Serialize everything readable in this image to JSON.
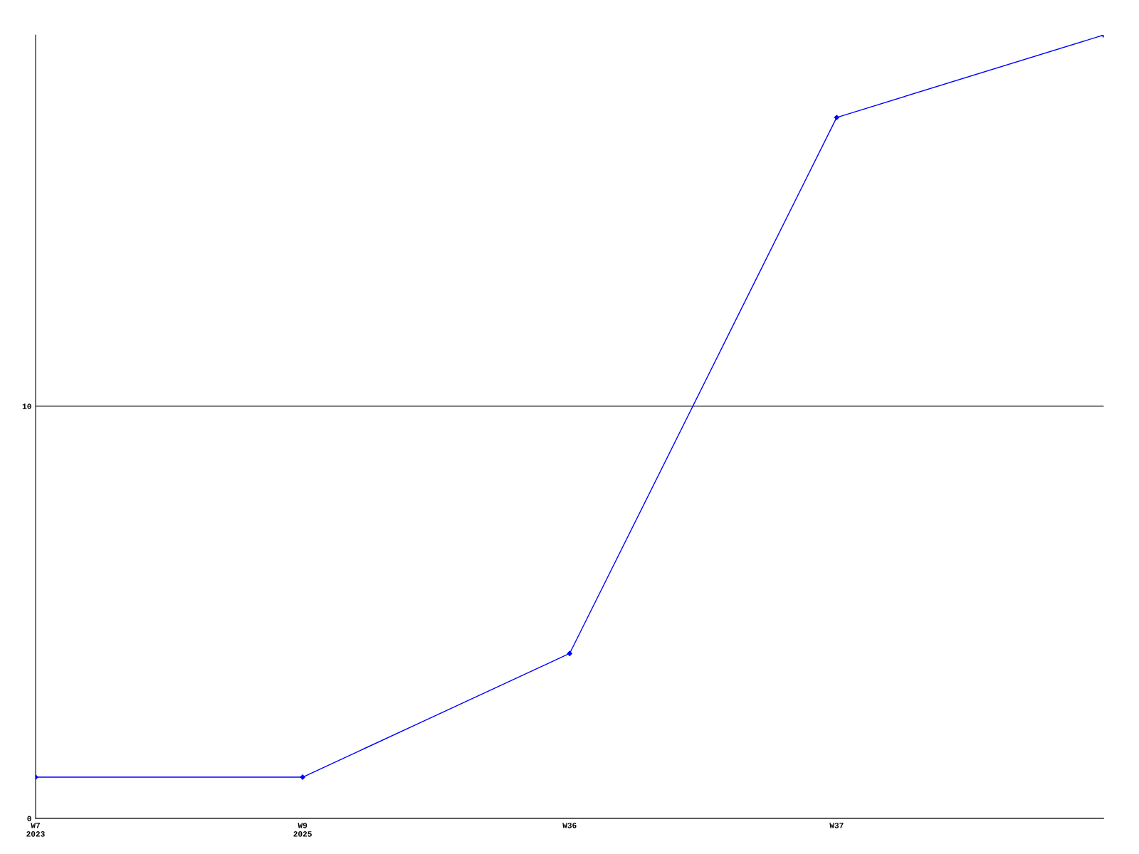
{
  "chart_data": {
    "type": "line",
    "categories": [
      "W7\n2023",
      "W9\n2025",
      "W36",
      "W37",
      null
    ],
    "series": [
      {
        "color": "#0000ff",
        "values": [
          1,
          1,
          4,
          17,
          19
        ]
      }
    ],
    "ylim": [
      0,
      19
    ],
    "yticks": [
      0,
      10
    ],
    "grid": "y",
    "marker": "diamond",
    "line_style": "solid"
  }
}
